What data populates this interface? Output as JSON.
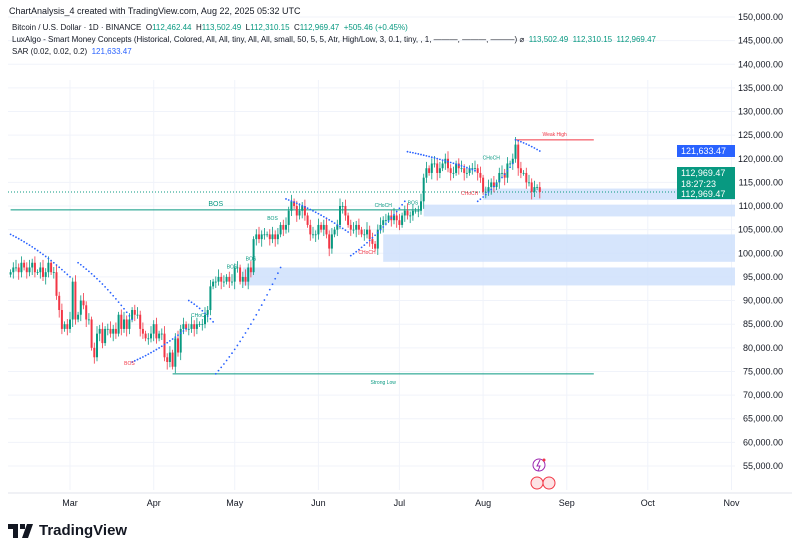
{
  "header": {
    "title": "ChartAnalysis_4 created with TradingView.com, Aug 22, 2025 05:32 UTC"
  },
  "legend": {
    "symbol": "Bitcoin / U.S. Dollar · 1D · BINANCE",
    "o_label": "O",
    "o": "112,462.44",
    "h_label": "H",
    "h": "113,502.49",
    "l_label": "L",
    "l": "112,310.15",
    "c_label": "C",
    "c": "112,969.47",
    "change": "+505.46 (+0.45%)",
    "indicator": "LuxAlgo - Smart Money Concepts (Historical, Colored, All, All, tiny, All, All, small, 50, 5, 5, Atr, High/Low, 3, 0.1, tiny, , 1, ———, ———, ———)",
    "indicator_icon": "⌀",
    "indicator_values": [
      "113,502.49",
      "112,310.15",
      "112,969.47"
    ],
    "sar": "SAR (0.02, 0.02, 0.2)",
    "sar_value": "121,633.47"
  },
  "price_tags": {
    "sar": "121,633.47",
    "last": "112,969.47",
    "countdown": "18:27:23",
    "close": "112,969.47"
  },
  "colors": {
    "up": "#089981",
    "down": "#f23645",
    "sar": "#2962ff",
    "zone": "#cfe0fb",
    "bos": "#089981"
  },
  "brand": "TradingView",
  "chart_data": {
    "type": "candlestick",
    "symbol": "BTCUSD",
    "ylim": [
      50000,
      152000
    ],
    "y_ticks": [
      "150,000.00",
      "145,000.00",
      "140,000.00",
      "135,000.00",
      "130,000.00",
      "125,000.00",
      "120,000.00",
      "115,000.00",
      "110,000.00",
      "105,000.00",
      "100,000.00",
      "95,000.00",
      "90,000.00",
      "85,000.00",
      "80,000.00",
      "75,000.00",
      "70,000.00",
      "65,000.00",
      "60,000.00",
      "55,000.00"
    ],
    "y_tick_values": [
      150000,
      145000,
      140000,
      135000,
      130000,
      125000,
      120000,
      115000,
      110000,
      105000,
      100000,
      95000,
      90000,
      85000,
      80000,
      75000,
      70000,
      65000,
      60000,
      55000
    ],
    "x_ticks": [
      {
        "label": "Mar",
        "day": 22
      },
      {
        "label": "Apr",
        "day": 53
      },
      {
        "label": "May",
        "day": 83
      },
      {
        "label": "Jun",
        "day": 114
      },
      {
        "label": "Jul",
        "day": 144
      },
      {
        "label": "Aug",
        "day": 175
      },
      {
        "label": "Sep",
        "day": 206
      },
      {
        "label": "Oct",
        "day": 236
      },
      {
        "label": "Nov",
        "day": 267
      }
    ],
    "closes_k": [
      96,
      97,
      97,
      96,
      98,
      97,
      96,
      97,
      98,
      96,
      96,
      97,
      95,
      96,
      98,
      96,
      96,
      91,
      88,
      84,
      85,
      84,
      86,
      94,
      86,
      87,
      90,
      89,
      86,
      86,
      80,
      78,
      83,
      84,
      81,
      84,
      84,
      83,
      84,
      83,
      87,
      84,
      86,
      84,
      86,
      88,
      87,
      87,
      84,
      83,
      82,
      82,
      83,
      85,
      82,
      83,
      83,
      78,
      77,
      79,
      76,
      82,
      79,
      84,
      85,
      84,
      84,
      85,
      84,
      85,
      85,
      85,
      87,
      88,
      93,
      94,
      94,
      95,
      94,
      94,
      95,
      94,
      94,
      97,
      97,
      94,
      95,
      94,
      97,
      96,
      103,
      104,
      103,
      104,
      104,
      104,
      103,
      104,
      103,
      104,
      106,
      105,
      106,
      109,
      111,
      110,
      108,
      109,
      110,
      108,
      106,
      104,
      104,
      104,
      106,
      105,
      106,
      104,
      101,
      104,
      105,
      106,
      110,
      110,
      108,
      106,
      105,
      105,
      106,
      105,
      104,
      104,
      105,
      103,
      102,
      101,
      105,
      106,
      107,
      107,
      108,
      107,
      108,
      107,
      106,
      108,
      109,
      108,
      108,
      109,
      109,
      109,
      111,
      116,
      118,
      117,
      119,
      119,
      117,
      118,
      119,
      120,
      118,
      117,
      117,
      119,
      118,
      118,
      117,
      117,
      118,
      118,
      118,
      117,
      116,
      113,
      113,
      114,
      115,
      114,
      115,
      117,
      117,
      116,
      119,
      119,
      120,
      123,
      118,
      117,
      117,
      115,
      115,
      113,
      114,
      114,
      112.97
    ],
    "zones": [
      {
        "from_day": 175,
        "top": 113700,
        "bottom": 111300
      },
      {
        "from_day": 153,
        "top": 110300,
        "bottom": 107800
      },
      {
        "from_day": 138,
        "top": 104000,
        "bottom": 98200
      },
      {
        "from_day": 86,
        "top": 97000,
        "bottom": 93200
      }
    ],
    "lines": [
      {
        "label": "BOS",
        "price": 109200,
        "from_day": 0,
        "to_day": 152,
        "color": "#089981"
      },
      {
        "label": "Strong Low",
        "price": 74500,
        "from_day": 60,
        "to_day": 216,
        "color": "#089981"
      },
      {
        "label": "Weak High",
        "price": 124000,
        "from_day": 187,
        "to_day": 216,
        "color": "#f23645"
      }
    ],
    "annotations": [
      {
        "text": "BOS",
        "day": 44,
        "price": 76400,
        "color": "#f23645"
      },
      {
        "text": "CHoCH",
        "day": 70,
        "price": 86500,
        "color": "#089981"
      },
      {
        "text": "BOS",
        "day": 82,
        "price": 96800,
        "color": "#089981"
      },
      {
        "text": "BOS",
        "day": 89,
        "price": 98500,
        "color": "#089981"
      },
      {
        "text": "BOS",
        "day": 97,
        "price": 107000,
        "color": "#089981"
      },
      {
        "text": "CHoCH",
        "day": 132,
        "price": 99800,
        "color": "#f23645"
      },
      {
        "text": "CHoCH",
        "day": 138,
        "price": 109800,
        "color": "#089981"
      },
      {
        "text": "BOS",
        "day": 149,
        "price": 110300,
        "color": "#089981"
      },
      {
        "text": "CHoCH",
        "day": 178,
        "price": 119800,
        "color": "#089981"
      },
      {
        "text": "CHoCH",
        "day": 170,
        "price": 112300,
        "color": "#f23645"
      }
    ],
    "sar_segments": [
      {
        "from_day": 0,
        "to_day": 22,
        "start": 104000,
        "end": 95000
      },
      {
        "from_day": 25,
        "to_day": 45,
        "start": 98000,
        "end": 86000
      },
      {
        "from_day": 45,
        "to_day": 65,
        "start": 77000,
        "end": 84000
      },
      {
        "from_day": 66,
        "to_day": 75,
        "start": 90000,
        "end": 85500
      },
      {
        "from_day": 76,
        "to_day": 100,
        "start": 74500,
        "end": 97000
      },
      {
        "from_day": 102,
        "to_day": 125,
        "start": 111500,
        "end": 104500
      },
      {
        "from_day": 126,
        "to_day": 146,
        "start": 99500,
        "end": 111000
      },
      {
        "from_day": 147,
        "to_day": 172,
        "start": 121500,
        "end": 117500
      },
      {
        "from_day": 173,
        "to_day": 186,
        "start": 111000,
        "end": 119000
      },
      {
        "from_day": 187,
        "to_day": 196,
        "start": 124000,
        "end": 121633
      }
    ]
  }
}
